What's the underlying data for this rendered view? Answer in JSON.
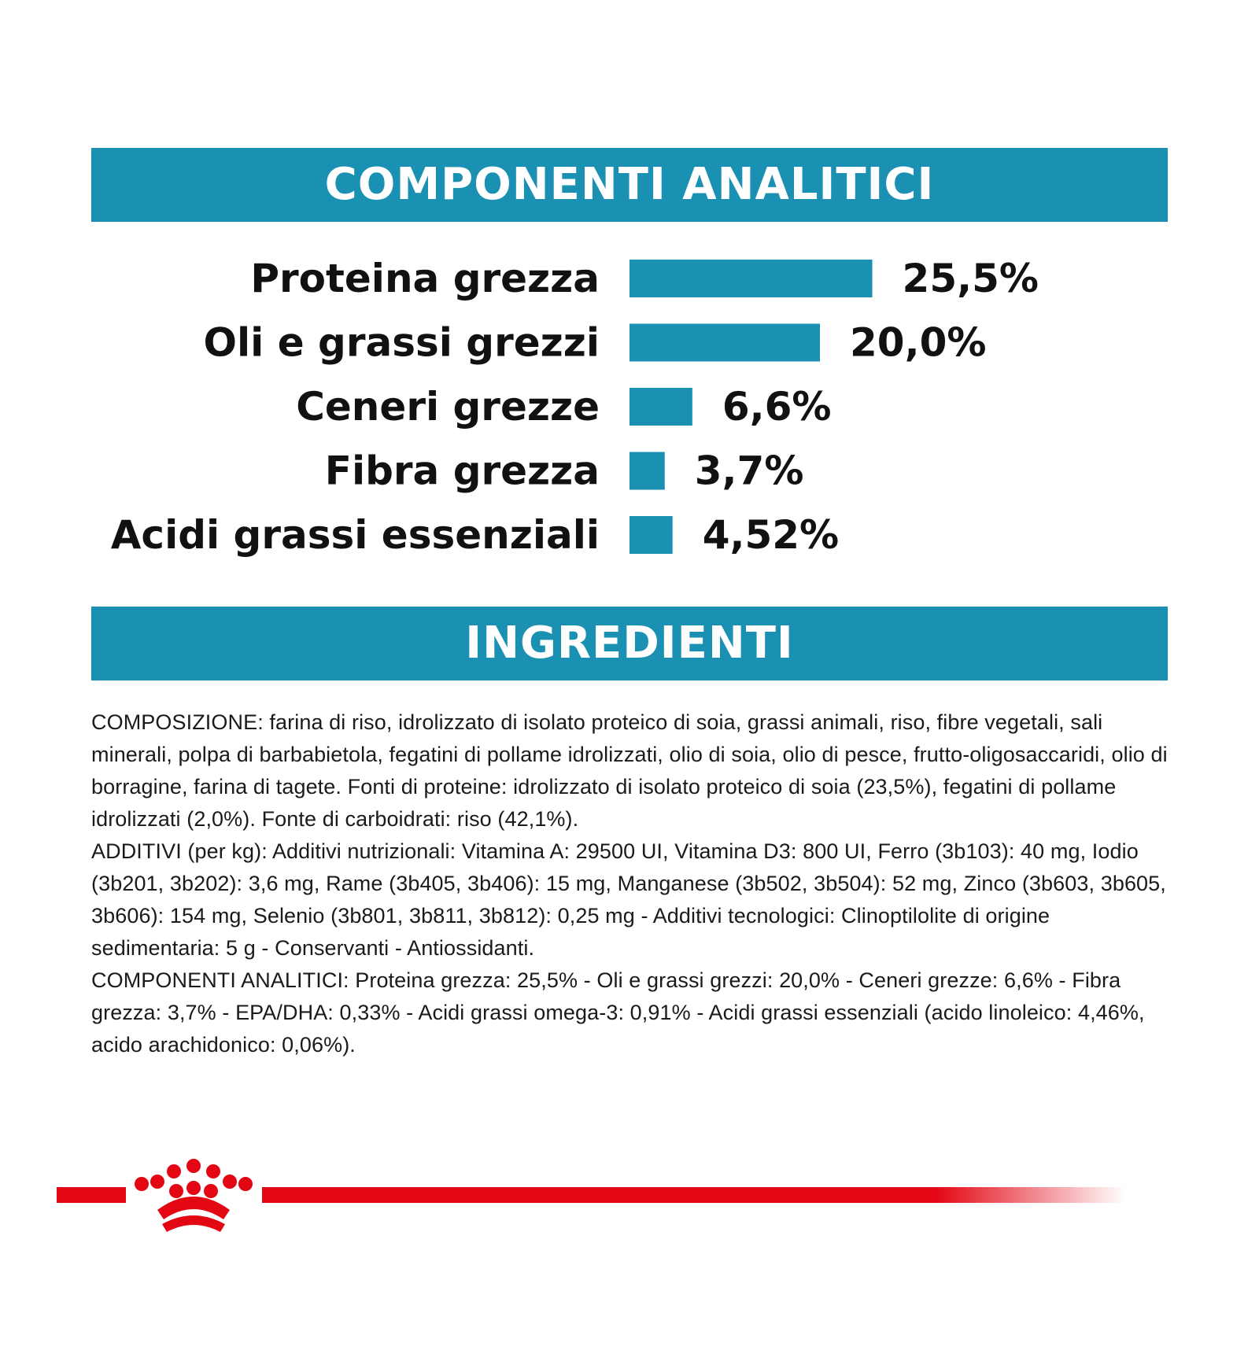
{
  "banners": {
    "analytic_title": "COMPONENTI ANALITICI",
    "ingredients_title": "INGREDIENTI"
  },
  "colors": {
    "banner_blue": "#1a90b2",
    "bar_blue": "#1a90b2",
    "brand_red": "#e30613",
    "text": "#111111"
  },
  "chart_data": {
    "type": "bar",
    "orientation": "horizontal",
    "title": "COMPONENTI ANALITICI",
    "categories": [
      "Proteina grezza",
      "Oli e grassi grezzi",
      "Ceneri grezze",
      "Fibra grezza",
      "Acidi grassi essenziali"
    ],
    "values": [
      25.5,
      20.0,
      6.6,
      3.7,
      4.52
    ],
    "value_labels": [
      "25,5%",
      "20,0%",
      "6,6%",
      "3,7%",
      "4,52%"
    ],
    "unit": "%",
    "xlabel": "",
    "ylabel": "",
    "grid": false,
    "legend": "none"
  },
  "ingredients": {
    "composition": "COMPOSIZIONE: farina di riso, idrolizzato di isolato proteico di soia, grassi animali, riso, fibre vegetali, sali minerali, polpa di barbabietola, fegatini di pollame idrolizzati, olio di soia, olio di pesce, frutto-oligosaccaridi, olio di borragine, farina di tagete. Fonti di proteine: idrolizzato di isolato proteico di soia (23,5%), fegatini di pollame idrolizzati (2,0%). Fonte di carboidrati: riso (42,1%).",
    "additives": "ADDITIVI (per kg): Additivi nutrizionali: Vitamina A: 29500 UI, Vitamina D3: 800 UI, Ferro (3b103): 40 mg, Iodio (3b201, 3b202): 3,6 mg, Rame (3b405, 3b406): 15 mg, Manganese (3b502, 3b504): 52 mg, Zinco (3b603, 3b605, 3b606): 154 mg, Selenio (3b801, 3b811, 3b812): 0,25 mg - Additivi tecnologici: Clinoptilolite di origine sedimentaria: 5 g - Conservanti - Antiossidanti.",
    "analytic": "COMPONENTI ANALITICI: Proteina grezza: 25,5% - Oli e grassi grezzi: 20,0% - Ceneri grezze: 6,6% - Fibra grezza: 3,7% - EPA/DHA: 0,33% - Acidi grassi omega-3: 0,91% - Acidi grassi essenziali (acido linoleico: 4,46%, acido arachidonico: 0,06%)."
  },
  "logo": {
    "icon": "royal-crown-icon"
  }
}
